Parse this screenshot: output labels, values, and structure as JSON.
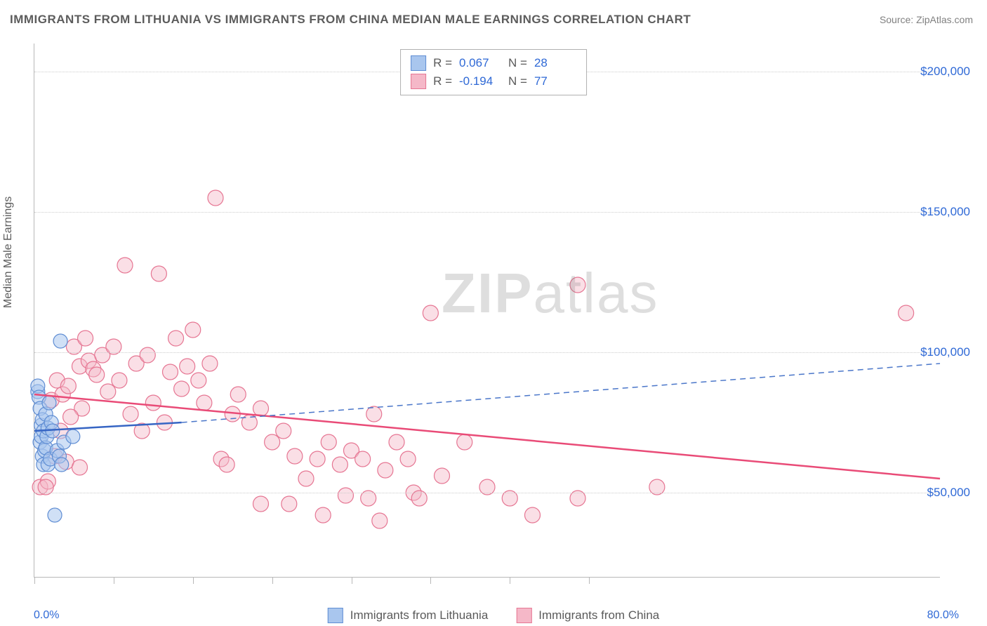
{
  "title": "IMMIGRANTS FROM LITHUANIA VS IMMIGRANTS FROM CHINA MEDIAN MALE EARNINGS CORRELATION CHART",
  "source": "Source: ZipAtlas.com",
  "ylabel": "Median Male Earnings",
  "watermark": "ZIPatlas",
  "chart": {
    "type": "scatter-correlation",
    "xlim": [
      0,
      80
    ],
    "ylim": [
      20000,
      210000
    ],
    "x_unit": "%",
    "xtick_positions": [
      0,
      7,
      14,
      21,
      28,
      35,
      42,
      49
    ],
    "xlim_labels": {
      "min": "0.0%",
      "max": "80.0%"
    },
    "ytick_positions": [
      50000,
      100000,
      150000,
      200000
    ],
    "ytick_labels": [
      "$50,000",
      "$100,000",
      "$150,000",
      "$200,000"
    ],
    "grid_color": "#cccccc",
    "axis_color": "#b8b8b8",
    "background_color": "#ffffff",
    "label_color": "#2f69d6",
    "text_color": "#5c5c5c",
    "title_fontsize": 17,
    "label_fontsize": 16,
    "tick_fontsize": 17
  },
  "series": {
    "blue": {
      "label": "Immigrants from Lithuania",
      "R": "0.067",
      "N": "28",
      "marker_fill": "#a9c6ee",
      "marker_stroke": "#5f8dd3",
      "marker_fill_opacity": 0.55,
      "marker_radius": 10,
      "line_color": "#3665c4",
      "line_width": 2.5,
      "dash_color": "#4a76c9",
      "trend_solid": {
        "x1": 0,
        "y1": 72000,
        "x2": 13,
        "y2": 75000
      },
      "trend_dash": {
        "x1": 13,
        "y1": 75000,
        "x2": 80,
        "y2": 96000
      },
      "points": [
        [
          0.3,
          86000
        ],
        [
          0.3,
          88000
        ],
        [
          0.4,
          84000
        ],
        [
          0.5,
          80000
        ],
        [
          0.5,
          68000
        ],
        [
          0.6,
          74000
        ],
        [
          0.6,
          70000
        ],
        [
          0.7,
          63000
        ],
        [
          0.7,
          76000
        ],
        [
          0.8,
          60000
        ],
        [
          0.8,
          72000
        ],
        [
          0.9,
          65000
        ],
        [
          1.0,
          78000
        ],
        [
          1.0,
          66000
        ],
        [
          1.1,
          70000
        ],
        [
          1.2,
          60000
        ],
        [
          1.2,
          73000
        ],
        [
          1.3,
          82000
        ],
        [
          1.4,
          62000
        ],
        [
          1.5,
          75000
        ],
        [
          1.6,
          72000
        ],
        [
          1.8,
          42000
        ],
        [
          2.0,
          65000
        ],
        [
          2.2,
          63000
        ],
        [
          2.4,
          60000
        ],
        [
          2.6,
          68000
        ],
        [
          2.3,
          104000
        ],
        [
          3.4,
          70000
        ]
      ]
    },
    "pink": {
      "label": "Immigrants from China",
      "R": "-0.194",
      "N": "77",
      "marker_fill": "#f5b8c8",
      "marker_stroke": "#e67693",
      "marker_fill_opacity": 0.45,
      "marker_radius": 11,
      "line_color": "#e94b77",
      "line_width": 2.5,
      "trend_solid": {
        "x1": 0,
        "y1": 85000,
        "x2": 80,
        "y2": 55000
      },
      "points": [
        [
          0.5,
          52000
        ],
        [
          1.2,
          54000
        ],
        [
          1.5,
          83000
        ],
        [
          1.8,
          63000
        ],
        [
          2.0,
          90000
        ],
        [
          2.3,
          72000
        ],
        [
          2.5,
          85000
        ],
        [
          2.8,
          61000
        ],
        [
          3.0,
          88000
        ],
        [
          4,
          59000
        ],
        [
          3.5,
          102000
        ],
        [
          4.0,
          95000
        ],
        [
          4.2,
          80000
        ],
        [
          4.5,
          105000
        ],
        [
          4.8,
          97000
        ],
        [
          5.2,
          94000
        ],
        [
          5.5,
          92000
        ],
        [
          6.0,
          99000
        ],
        [
          6.5,
          86000
        ],
        [
          7.0,
          102000
        ],
        [
          7.5,
          90000
        ],
        [
          8.0,
          131000
        ],
        [
          8.5,
          78000
        ],
        [
          9.0,
          96000
        ],
        [
          9.5,
          72000
        ],
        [
          10,
          99000
        ],
        [
          10.5,
          82000
        ],
        [
          11,
          128000
        ],
        [
          11.5,
          75000
        ],
        [
          12,
          93000
        ],
        [
          12.5,
          105000
        ],
        [
          13,
          87000
        ],
        [
          13.5,
          95000
        ],
        [
          14,
          108000
        ],
        [
          14.5,
          90000
        ],
        [
          15,
          82000
        ],
        [
          15.5,
          96000
        ],
        [
          16,
          155000
        ],
        [
          16.5,
          62000
        ],
        [
          17,
          60000
        ],
        [
          17.5,
          78000
        ],
        [
          18,
          85000
        ],
        [
          19,
          75000
        ],
        [
          20,
          80000
        ],
        [
          20,
          46000
        ],
        [
          21,
          68000
        ],
        [
          22,
          72000
        ],
        [
          22.5,
          46000
        ],
        [
          23,
          63000
        ],
        [
          24,
          55000
        ],
        [
          25,
          62000
        ],
        [
          25.5,
          42000
        ],
        [
          26,
          68000
        ],
        [
          27,
          60000
        ],
        [
          27.5,
          49000
        ],
        [
          28,
          65000
        ],
        [
          29,
          62000
        ],
        [
          29.5,
          48000
        ],
        [
          30,
          78000
        ],
        [
          30.5,
          40000
        ],
        [
          31,
          58000
        ],
        [
          32,
          68000
        ],
        [
          33,
          62000
        ],
        [
          33.5,
          50000
        ],
        [
          34,
          48000
        ],
        [
          35,
          114000
        ],
        [
          36,
          56000
        ],
        [
          38,
          68000
        ],
        [
          40,
          52000
        ],
        [
          42,
          48000
        ],
        [
          44,
          42000
        ],
        [
          48,
          124000
        ],
        [
          48,
          48000
        ],
        [
          55,
          52000
        ],
        [
          77,
          114000
        ],
        [
          1.0,
          52000
        ],
        [
          3.2,
          77000
        ]
      ]
    }
  }
}
